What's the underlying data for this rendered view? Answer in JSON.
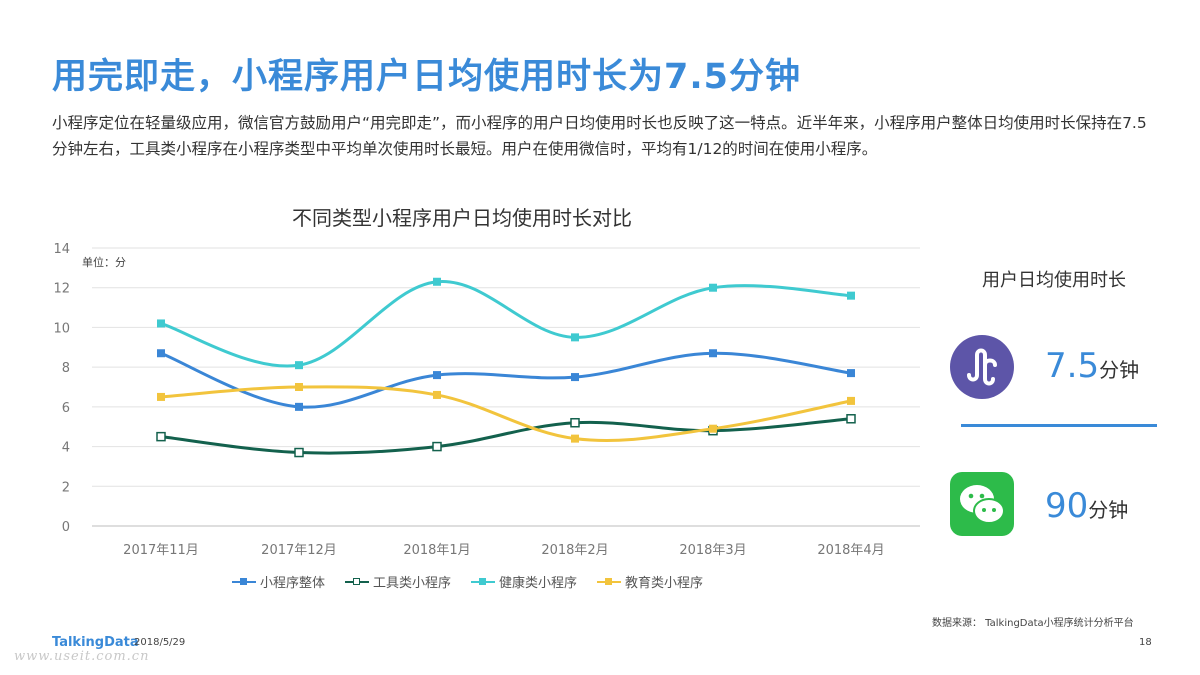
{
  "title": "用完即走，小程序用户日均使用时长为7.5分钟",
  "description": "小程序定位在轻量级应用，微信官方鼓励用户“用完即走”，而小程序的用户日均使用时长也反映了这一特点。近半年来，小程序用户整体日均使用时长保持在7.5分钟左右，工具类小程序在小程序类型中平均单次使用时长最短。用户在使用微信时，平均有1/12的时间在使用小程序。",
  "chart_data": {
    "type": "line",
    "title": "不同类型小程序用户日均使用时长对比",
    "unit_label": "单位：分",
    "categories": [
      "2017年11月",
      "2017年12月",
      "2018年1月",
      "2018年2月",
      "2018年3月",
      "2018年4月"
    ],
    "ylim": [
      0,
      14
    ],
    "yticks": [
      "0",
      "2",
      "4",
      "6",
      "8",
      "10",
      "12",
      "14"
    ],
    "grid": true,
    "legend_position": "bottom",
    "series": [
      {
        "name": "小程序整体",
        "values": [
          8.7,
          6.0,
          7.6,
          7.5,
          8.7,
          7.7
        ],
        "color": "#3a86d6",
        "marker": "filled-square"
      },
      {
        "name": "工具类小程序",
        "values": [
          4.5,
          3.7,
          4.0,
          5.2,
          4.8,
          5.4
        ],
        "color": "#13614d",
        "marker": "hollow-square"
      },
      {
        "name": "健康类小程序",
        "values": [
          10.2,
          8.1,
          12.3,
          9.5,
          12.0,
          11.6
        ],
        "color": "#3fcad0",
        "marker": "filled-square"
      },
      {
        "name": "教育类小程序",
        "values": [
          6.5,
          7.0,
          6.6,
          4.4,
          4.9,
          6.3
        ],
        "color": "#f2c43d",
        "marker": "filled-square"
      }
    ]
  },
  "side": {
    "title": "用户日均使用时长",
    "mini_program": {
      "value": "7.5",
      "unit": "分钟",
      "icon": "mini-program-icon",
      "color": "#5d55a8"
    },
    "wechat": {
      "value": "90",
      "unit": "分钟",
      "icon": "wechat-icon",
      "color": "#2dbb4a"
    }
  },
  "footer": {
    "source": "数据来源： TalkingData小程序统计分析平台",
    "brand": "TalkingData",
    "date": "2018/5/29",
    "page": "18",
    "watermark": "www.useit.com.cn"
  }
}
